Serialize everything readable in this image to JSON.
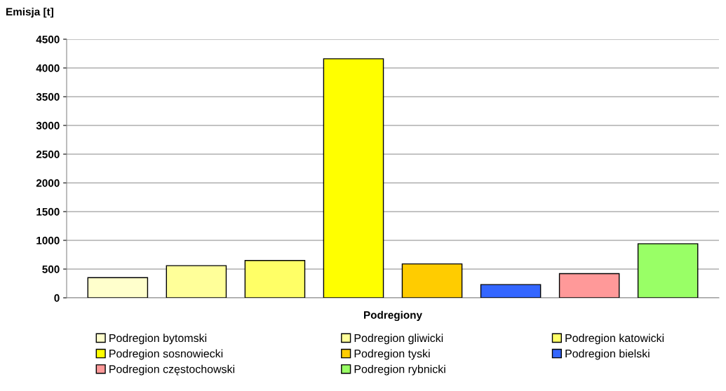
{
  "chart_data": {
    "type": "bar",
    "xlabel": "Podregiony",
    "ylabel": "Emisja [t]",
    "categories": [
      null
    ],
    "series": [
      {
        "name": "Podregion bytomski",
        "color": "#ffffcc",
        "values": [
          350
        ]
      },
      {
        "name": "Podregion gliwicki",
        "color": "#ffff99",
        "values": [
          560
        ]
      },
      {
        "name": "Podregion katowicki",
        "color": "#ffff66",
        "values": [
          650
        ]
      },
      {
        "name": "Podregion sosnowiecki",
        "color": "#ffff00",
        "values": [
          4160
        ]
      },
      {
        "name": "Podregion tyski",
        "color": "#ffcc00",
        "values": [
          590
        ]
      },
      {
        "name": "Podregion bielski",
        "color": "#3366ff",
        "values": [
          230
        ]
      },
      {
        "name": "Podregion częstochowski",
        "color": "#ff9999",
        "values": [
          420
        ]
      },
      {
        "name": "Podregion rybnicki",
        "color": "#99ff66",
        "values": [
          940
        ]
      }
    ],
    "ylim": [
      0,
      4500
    ],
    "yticks": [
      0,
      500,
      1000,
      1500,
      2000,
      2500,
      3000,
      3500,
      4000,
      4500
    ],
    "grid": "y",
    "legend": "bottom"
  }
}
